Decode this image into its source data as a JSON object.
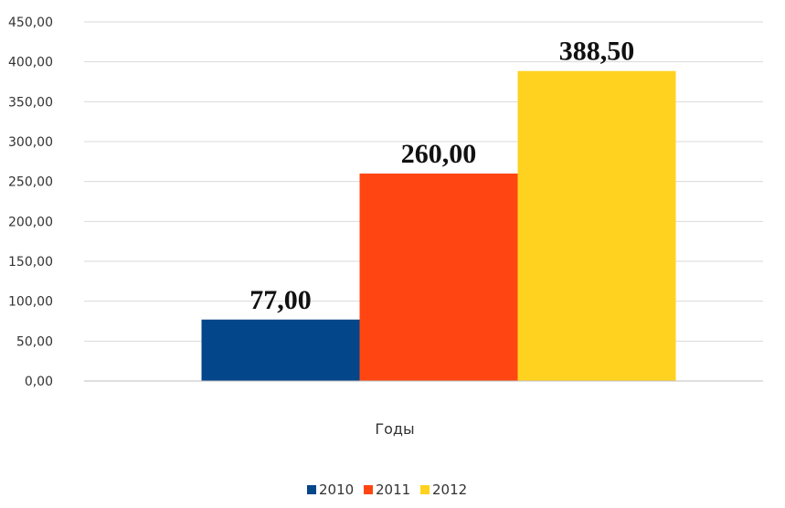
{
  "chart_data": {
    "type": "bar",
    "categories": [
      "Годы"
    ],
    "series": [
      {
        "name": "2010",
        "values": [
          77.0
        ],
        "label": "77,00",
        "color": "#03468A"
      },
      {
        "name": "2011",
        "values": [
          260.0
        ],
        "label": "260,00",
        "color": "#FF4612"
      },
      {
        "name": "2012",
        "values": [
          388.5
        ],
        "label": "388,50",
        "color": "#FFD21F"
      }
    ],
    "xlabel": "Годы",
    "ylim": [
      0,
      450
    ],
    "y_ticks": [
      0,
      50,
      100,
      150,
      200,
      250,
      300,
      350,
      400,
      450
    ],
    "y_tick_labels": [
      "0,00",
      "50,00",
      "100,00",
      "150,00",
      "200,00",
      "250,00",
      "300,00",
      "350,00",
      "400,00",
      "450,00"
    ],
    "grid": true,
    "legend_position": "bottom",
    "gridline_color": "#D9D9D9",
    "axis_color": "#BFBFBF"
  }
}
